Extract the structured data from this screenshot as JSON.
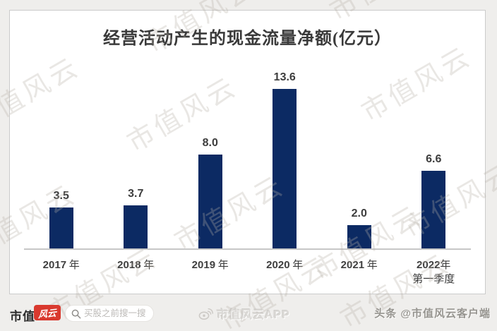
{
  "watermark": {
    "text": "市值风云"
  },
  "chart_data": {
    "type": "bar",
    "title": "经营活动产生的现金流量净额(亿元）",
    "categories": [
      "2017 年",
      "2018 年",
      "2019 年",
      "2020 年",
      "2021 年",
      "2022年\n第一季度"
    ],
    "values": [
      3.5,
      3.7,
      8.0,
      13.6,
      2.0,
      6.6
    ],
    "value_labels": [
      "3.5",
      "3.7",
      "8.0",
      "13.6",
      "2.0",
      "6.6"
    ],
    "xlabel": "",
    "ylabel": "",
    "ylim": [
      0,
      15
    ],
    "grid": false,
    "legend": "none",
    "bar_color": "#0c2a63"
  },
  "footer": {
    "brand_prefix": "市值",
    "brand_logo_text": "风云",
    "search_placeholder": "买股之前搜一搜",
    "weibo_icon": "weibo-icon",
    "search_icon": "search-icon",
    "app_label": "市值风云APP",
    "toutiao_label": "头条 @市值风云客户端"
  },
  "colors": {
    "bar": "#0c2a63",
    "brand_red": "#d9392e",
    "axis_line": "#c7c7c7"
  }
}
